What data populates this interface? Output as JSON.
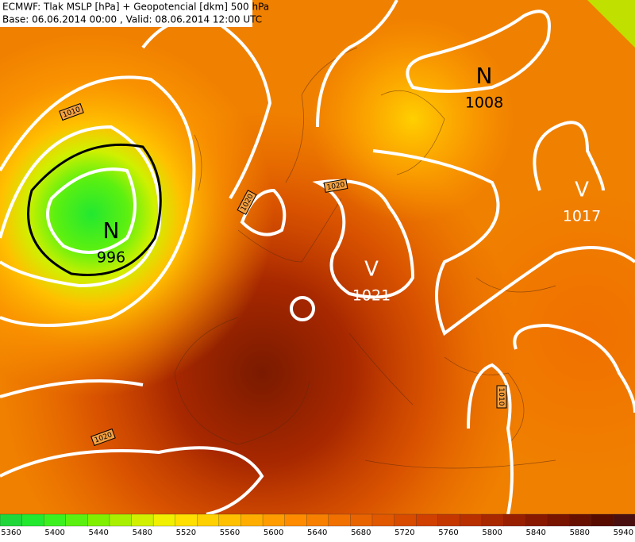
{
  "header": {
    "line1": "ECMWF: Tlak MSLP [hPa] + Geopotencial [dkm] 500 hPa",
    "line2": "Base: 06.06.2014 00:00 , Valid: 08.06.2014 12:00 UTC"
  },
  "centers": [
    {
      "letter": "N",
      "value": "996"
    },
    {
      "letter": "N",
      "value": "1008"
    },
    {
      "letter": "V",
      "value": "1017"
    },
    {
      "letter": "V",
      "value": "1021"
    }
  ],
  "isobar_labels": [
    "1010",
    "1020",
    "1020",
    "1010",
    "1020"
  ],
  "legend": {
    "ticks": [
      "5360",
      "5400",
      "5440",
      "5480",
      "5520",
      "5560",
      "5600",
      "5640",
      "5680",
      "5720",
      "5760",
      "5800",
      "5840",
      "5880",
      "5940"
    ],
    "colors": [
      "#1fd73a",
      "#22e830",
      "#3cf020",
      "#5cf010",
      "#80f000",
      "#a8f000",
      "#d0f000",
      "#f0f000",
      "#ffe000",
      "#ffd000",
      "#ffc000",
      "#ffae00",
      "#ff9c00",
      "#ff8c00",
      "#f88000",
      "#f07000",
      "#e86400",
      "#e05800",
      "#d84c00",
      "#d04000",
      "#c43800",
      "#b83000",
      "#a82800",
      "#982000",
      "#881800",
      "#781400",
      "#681000",
      "#580c00",
      "#4a1010"
    ]
  }
}
